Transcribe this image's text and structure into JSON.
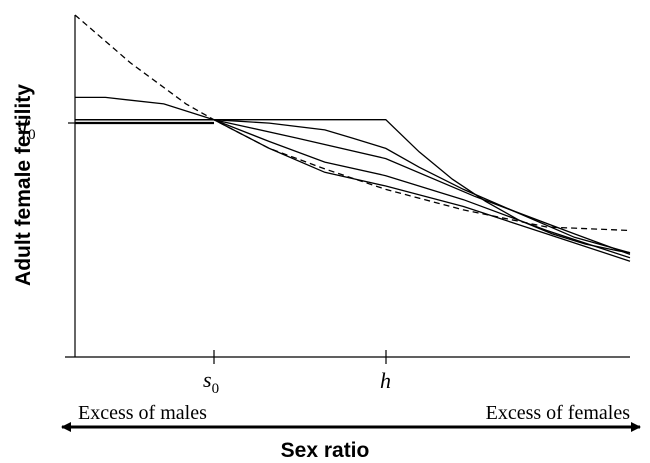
{
  "chart_data": {
    "type": "line",
    "title": "",
    "ylabel": "Adult female fertility",
    "xlabel": "Sex ratio",
    "xlim": [
      0,
      1
    ],
    "ylim": [
      0,
      1
    ],
    "y_ticks": [
      {
        "main": "f",
        "sub": "0",
        "value": 0.694
      }
    ],
    "x_ticks": [
      {
        "main": "s",
        "sub": "0",
        "value": 0.25
      },
      {
        "main": "h",
        "sub": "",
        "value": 0.56
      }
    ],
    "region_labels": {
      "left": "Excess of males",
      "right": "Excess of females"
    },
    "grid": false,
    "legend": "none",
    "series": [
      {
        "style": "solid",
        "x": [
          0,
          0.56,
          0.62,
          0.68,
          0.74,
          0.8,
          0.86,
          0.92,
          0.98,
          1.0
        ],
        "y": [
          0.694,
          0.694,
          0.6,
          0.52,
          0.455,
          0.4,
          0.36,
          0.33,
          0.31,
          0.305
        ]
      },
      {
        "style": "solid",
        "x": [
          0,
          0.25,
          0.35,
          0.45,
          0.5,
          0.56,
          0.62,
          0.7,
          0.8,
          0.9,
          1.0
        ],
        "y": [
          0.694,
          0.694,
          0.684,
          0.664,
          0.64,
          0.61,
          0.555,
          0.49,
          0.42,
          0.35,
          0.305
        ]
      },
      {
        "style": "solid",
        "x": [
          0,
          0.055,
          0.16,
          0.25,
          0.4,
          0.56,
          0.72,
          0.9,
          1.0
        ],
        "y": [
          0.759,
          0.759,
          0.74,
          0.694,
          0.64,
          0.58,
          0.47,
          0.36,
          0.3
        ]
      },
      {
        "style": "solid",
        "x": [
          0,
          0.25,
          0.35,
          0.45,
          0.56,
          0.7,
          0.85,
          1.0
        ],
        "y": [
          0.694,
          0.694,
          0.63,
          0.57,
          0.53,
          0.46,
          0.37,
          0.29
        ]
      },
      {
        "style": "solid",
        "x": [
          0,
          0.25,
          0.35,
          0.45,
          0.56,
          0.7,
          0.85,
          1.0
        ],
        "y": [
          0.694,
          0.694,
          0.61,
          0.54,
          0.5,
          0.44,
          0.36,
          0.28
        ]
      },
      {
        "style": "dashed",
        "x": [
          0,
          0.05,
          0.1,
          0.15,
          0.2,
          0.25,
          0.35,
          0.45,
          0.56,
          0.7,
          0.85,
          1.0
        ],
        "y": [
          1.0,
          0.93,
          0.86,
          0.8,
          0.74,
          0.694,
          0.61,
          0.55,
          0.49,
          0.43,
          0.38,
          0.37
        ]
      }
    ]
  }
}
